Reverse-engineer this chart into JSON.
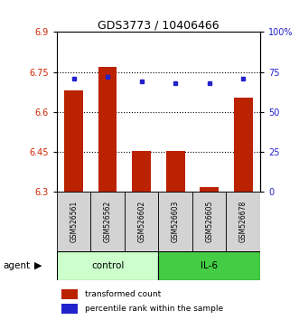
{
  "title": "GDS3773 / 10406466",
  "samples": [
    "GSM526561",
    "GSM526562",
    "GSM526602",
    "GSM526603",
    "GSM526605",
    "GSM526678"
  ],
  "bar_values": [
    6.68,
    6.77,
    6.455,
    6.455,
    6.32,
    6.655
  ],
  "bar_bottom": 6.3,
  "percentile_values": [
    71,
    72,
    69,
    68,
    68,
    71
  ],
  "ylim_left": [
    6.3,
    6.9
  ],
  "ylim_right": [
    0,
    100
  ],
  "yticks_left": [
    6.3,
    6.45,
    6.6,
    6.75,
    6.9
  ],
  "yticks_right": [
    0,
    25,
    50,
    75,
    100
  ],
  "ytick_labels_left": [
    "6.3",
    "6.45",
    "6.6",
    "6.75",
    "6.9"
  ],
  "ytick_labels_right": [
    "0",
    "25",
    "50",
    "75",
    "100%"
  ],
  "hlines": [
    6.75,
    6.6,
    6.45
  ],
  "bar_color": "#bb2200",
  "dot_color": "#2222cc",
  "control_color": "#ccffcc",
  "il6_color": "#44cc44",
  "legend_bar_label": "transformed count",
  "legend_dot_label": "percentile rank within the sample",
  "agent_label": "agent",
  "bar_width": 0.55,
  "plot_bg": "#ffffff",
  "tick_label_color_left": "#cc2200",
  "tick_label_color_right": "#2222cc",
  "title_fontsize": 9
}
